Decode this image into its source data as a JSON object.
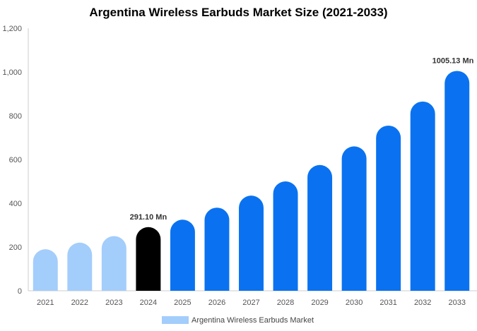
{
  "chart_data": {
    "type": "bar",
    "title": "Argentina Wireless Earbuds Market Size (2021-2033)",
    "xlabel": "",
    "ylabel": "",
    "categories": [
      "2021",
      "2022",
      "2023",
      "2024",
      "2025",
      "2026",
      "2027",
      "2028",
      "2029",
      "2030",
      "2031",
      "2032",
      "2033"
    ],
    "series": [
      {
        "name": "Argentina Wireless Earbuds Market",
        "values": [
          190,
          220,
          250,
          291.1,
          325,
          380,
          435,
          500,
          575,
          660,
          755,
          865,
          1005.13
        ]
      }
    ],
    "bar_colors": [
      "#a3cdfb",
      "#a3cdfb",
      "#a3cdfb",
      "#000000",
      "#0a72f0",
      "#0a72f0",
      "#0a72f0",
      "#0a72f0",
      "#0a72f0",
      "#0a72f0",
      "#0a72f0",
      "#0a72f0",
      "#0a72f0"
    ],
    "legend_color": "#a3cdfb",
    "data_labels": [
      {
        "index": 3,
        "text": "291.10 Mn"
      },
      {
        "index": 12,
        "text": "1005.13 Mn"
      }
    ],
    "yticks": [
      "0",
      "200",
      "400",
      "600",
      "800",
      "1,000",
      "1,200"
    ],
    "ylim": [
      0,
      1200
    ],
    "grid": false,
    "legend_position": "bottom"
  }
}
